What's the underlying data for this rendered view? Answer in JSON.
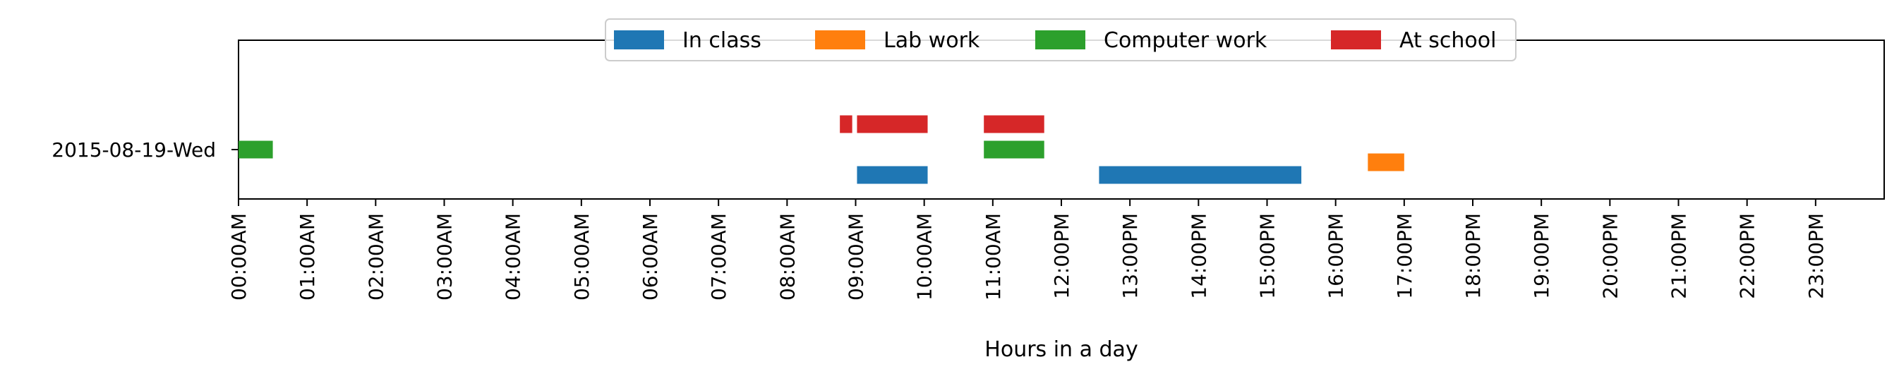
{
  "chart_data": {
    "type": "timeline",
    "title": "",
    "xlabel": "Hours in a day",
    "ylabel": "",
    "xlim": [
      0,
      24
    ],
    "row_label": "2015-08-19-Wed",
    "x_ticks": [
      "00:00AM",
      "01:00AM",
      "02:00AM",
      "03:00AM",
      "04:00AM",
      "05:00AM",
      "06:00AM",
      "07:00AM",
      "08:00AM",
      "09:00AM",
      "10:00AM",
      "11:00AM",
      "12:00PM",
      "13:00PM",
      "14:00PM",
      "15:00PM",
      "16:00PM",
      "17:00PM",
      "18:00PM",
      "19:00PM",
      "20:00PM",
      "21:00PM",
      "22:00PM",
      "23:00PM"
    ],
    "legend_position": "top-center",
    "grid": false,
    "series": [
      {
        "name": "In class",
        "color": "#1f77b4",
        "lane": -1,
        "intervals": [
          [
            9.02,
            10.05
          ],
          [
            12.55,
            15.5
          ]
        ]
      },
      {
        "name": "Lab work",
        "color": "#ff7f0e",
        "lane": -0.5,
        "intervals": [
          [
            16.47,
            17.0
          ]
        ]
      },
      {
        "name": "Computer work",
        "color": "#2ca02c",
        "lane": 0,
        "intervals": [
          [
            0.0,
            0.5
          ],
          [
            10.87,
            11.75
          ]
        ]
      },
      {
        "name": "At school",
        "color": "#d62728",
        "lane": 1,
        "intervals": [
          [
            8.77,
            8.95
          ],
          [
            9.02,
            10.05
          ],
          [
            10.87,
            11.75
          ]
        ]
      }
    ]
  }
}
